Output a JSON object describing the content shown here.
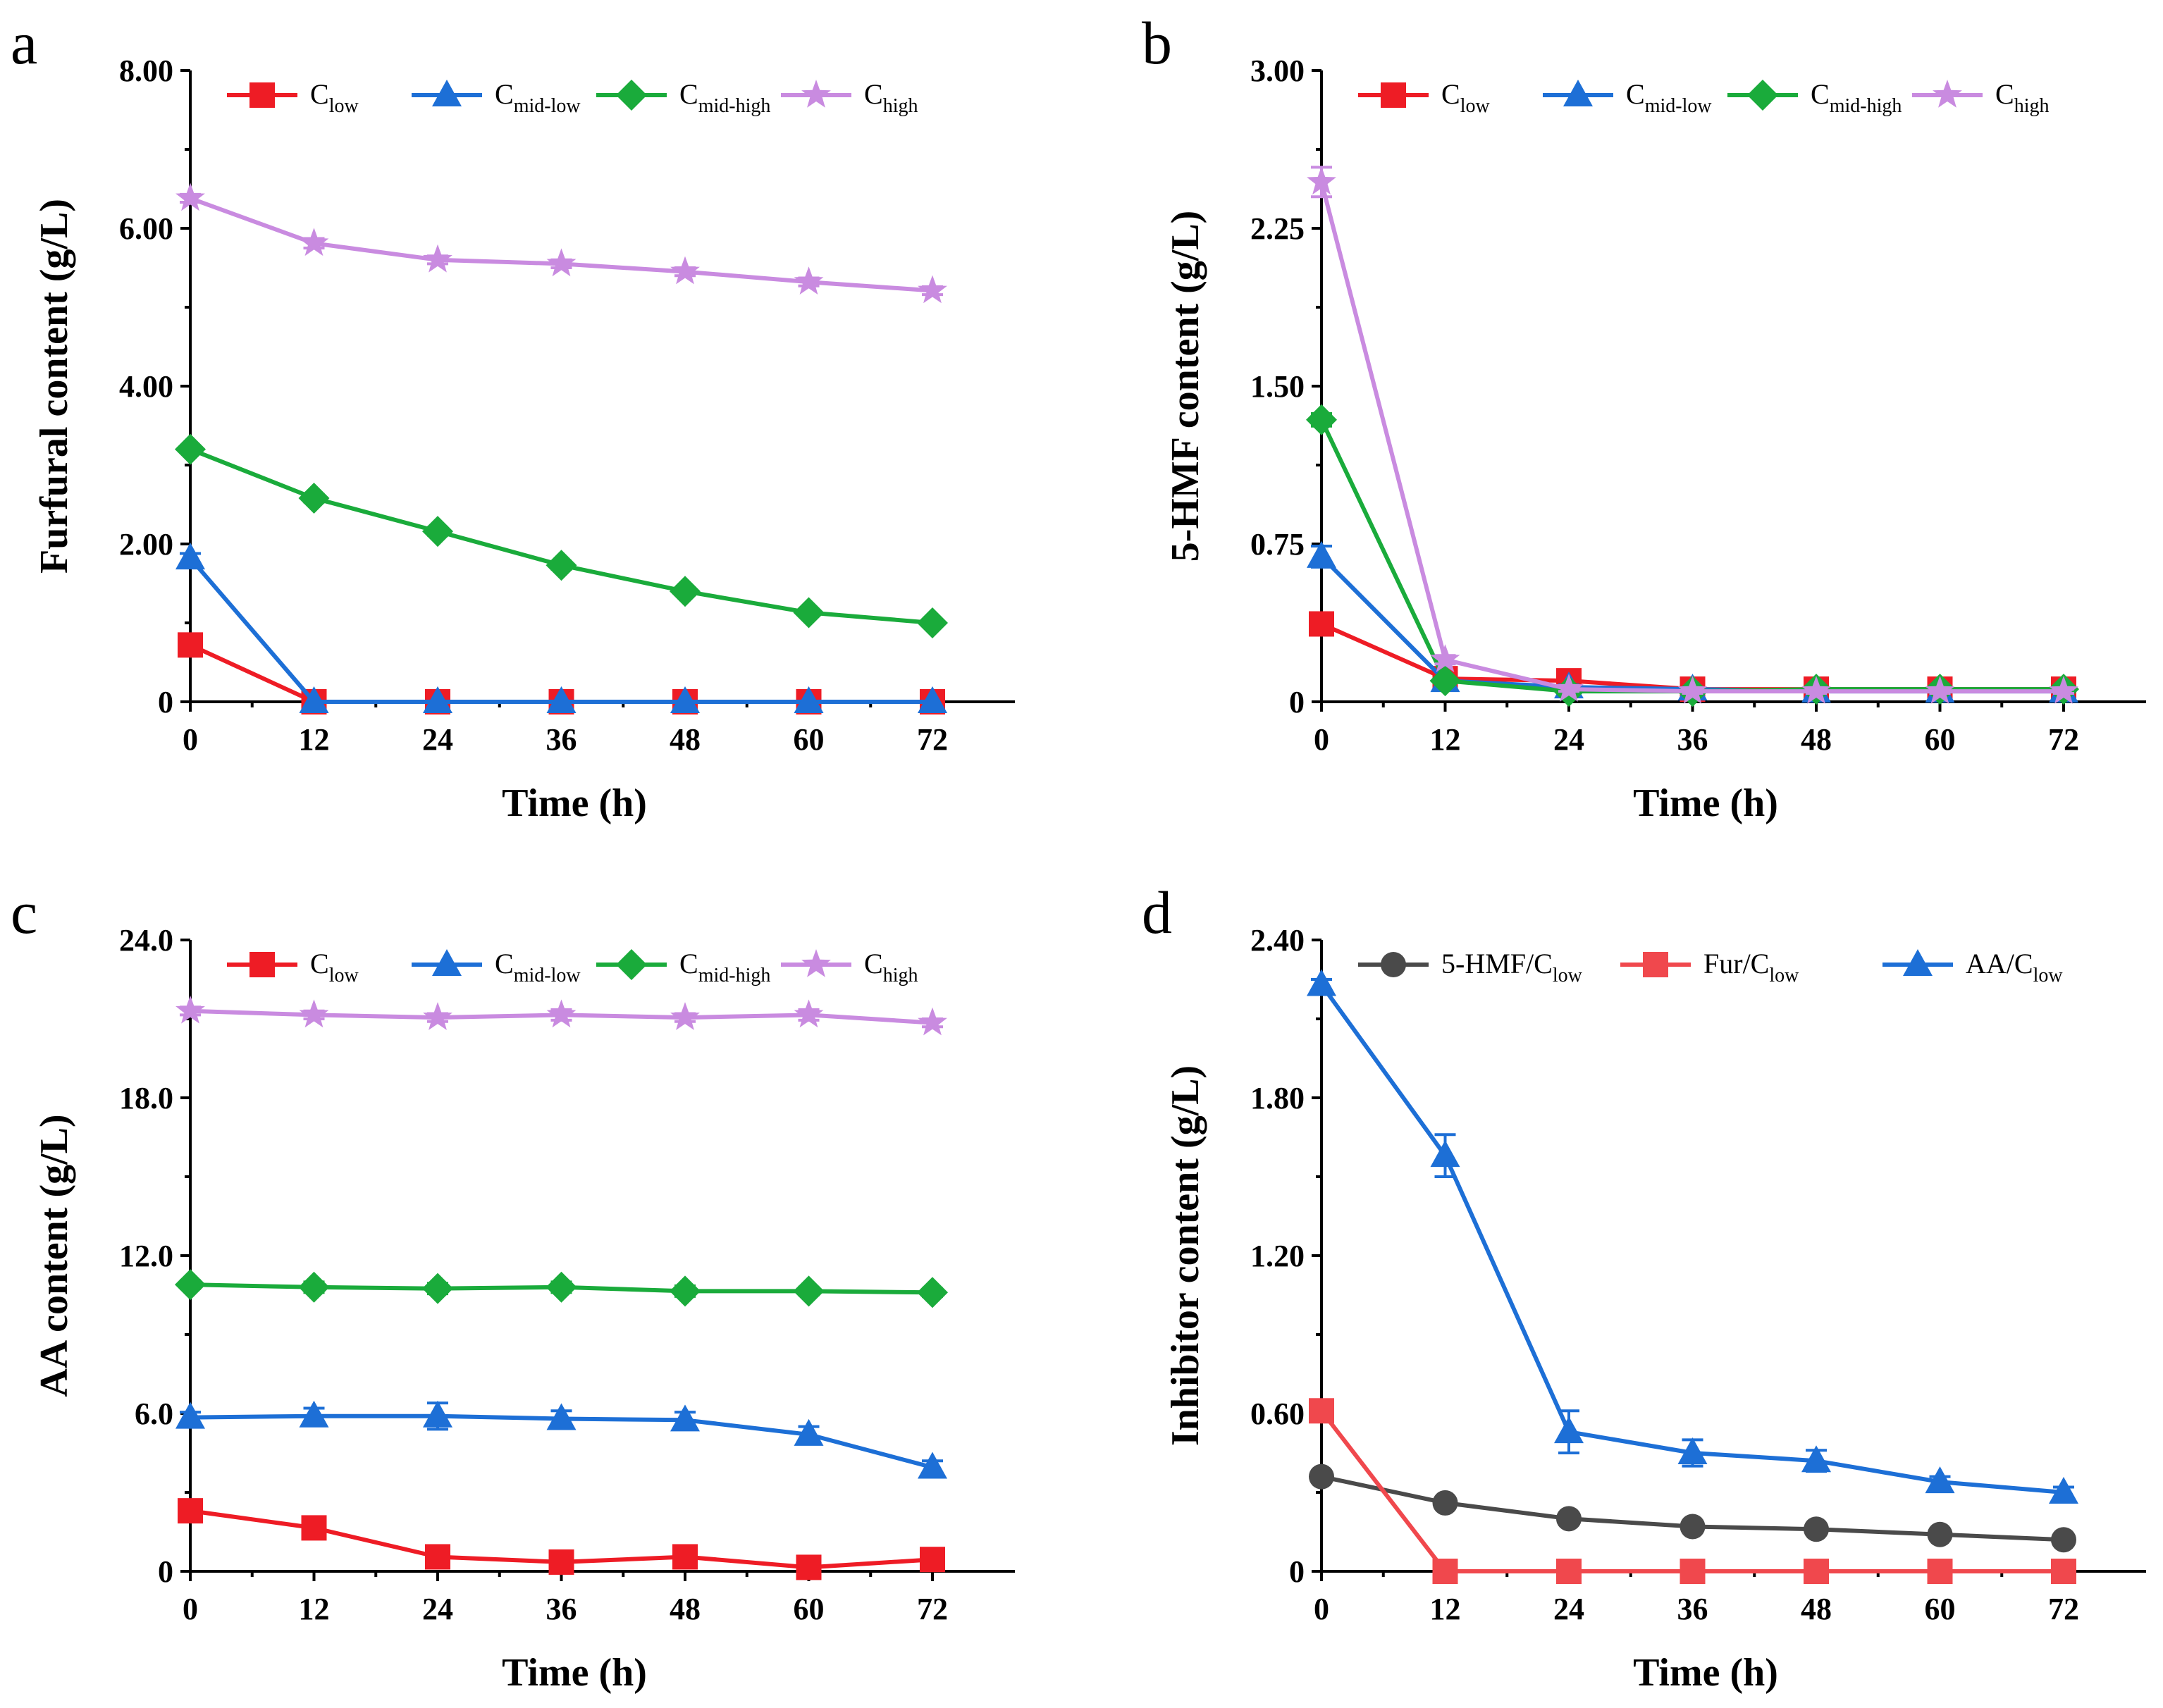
{
  "chart_data": [
    {
      "type": "line",
      "panel_label": "a",
      "xlabel": "Time (h)",
      "ylabel": "Furfural content (g/L)",
      "x": [
        0,
        12,
        24,
        36,
        48,
        60,
        72
      ],
      "xlim": [
        0,
        80
      ],
      "ylim": [
        0,
        8
      ],
      "yticks": [
        0,
        2,
        4,
        6,
        8
      ],
      "ytick_labels": [
        "0",
        "2.00",
        "4.00",
        "6.00",
        "8.00"
      ],
      "legend_position": "top",
      "series": [
        {
          "name": "C",
          "sub": "low",
          "color": "#ee1c25",
          "marker": "square",
          "values": [
            0.72,
            0,
            0,
            0,
            0,
            0,
            0
          ],
          "errors": [
            0.05,
            0,
            0,
            0,
            0,
            0,
            0
          ]
        },
        {
          "name": "C",
          "sub": "mid-low",
          "color": "#1d6fd6",
          "marker": "triangle",
          "values": [
            1.82,
            0,
            0,
            0,
            0,
            0,
            0
          ],
          "errors": [
            0.06,
            0,
            0,
            0,
            0,
            0,
            0
          ]
        },
        {
          "name": "C",
          "sub": "mid-high",
          "color": "#1aab3b",
          "marker": "diamond",
          "values": [
            3.2,
            2.58,
            2.16,
            1.73,
            1.4,
            1.13,
            1.0
          ],
          "errors": [
            0.04,
            0.05,
            0.05,
            0.05,
            0.04,
            0.04,
            0.04
          ]
        },
        {
          "name": "C",
          "sub": "high",
          "color": "#c98be0",
          "marker": "star",
          "values": [
            6.38,
            5.81,
            5.6,
            5.55,
            5.45,
            5.32,
            5.21
          ],
          "errors": [
            0.05,
            0.06,
            0.05,
            0.05,
            0.05,
            0.05,
            0.05
          ]
        }
      ]
    },
    {
      "type": "line",
      "panel_label": "b",
      "xlabel": "Time (h)",
      "ylabel": "5-HMF content (g/L)",
      "x": [
        0,
        12,
        24,
        36,
        48,
        60,
        72
      ],
      "xlim": [
        0,
        80
      ],
      "ylim": [
        0,
        3
      ],
      "yticks": [
        0,
        0.75,
        1.5,
        2.25,
        3.0
      ],
      "ytick_labels": [
        "0",
        "0.75",
        "1.50",
        "2.25",
        "3.00"
      ],
      "legend_position": "top",
      "series": [
        {
          "name": "C",
          "sub": "low",
          "color": "#ee1c25",
          "marker": "square",
          "values": [
            0.37,
            0.11,
            0.1,
            0.06,
            0.06,
            0.06,
            0.06
          ],
          "errors": [
            0.02,
            0.01,
            0.01,
            0.01,
            0.01,
            0.01,
            0.01
          ]
        },
        {
          "name": "C",
          "sub": "mid-low",
          "color": "#1d6fd6",
          "marker": "triangle",
          "values": [
            0.69,
            0.1,
            0.07,
            0.06,
            0.05,
            0.05,
            0.05
          ],
          "errors": [
            0.05,
            0.01,
            0.01,
            0.01,
            0.01,
            0.01,
            0.01
          ]
        },
        {
          "name": "C",
          "sub": "mid-high",
          "color": "#1aab3b",
          "marker": "diamond",
          "values": [
            1.34,
            0.1,
            0.05,
            0.05,
            0.06,
            0.06,
            0.06
          ],
          "errors": [
            0.03,
            0.01,
            0.01,
            0.01,
            0.01,
            0.01,
            0.01
          ]
        },
        {
          "name": "C",
          "sub": "high",
          "color": "#c98be0",
          "marker": "star",
          "values": [
            2.47,
            0.2,
            0.06,
            0.05,
            0.05,
            0.05,
            0.05
          ],
          "errors": [
            0.07,
            0.02,
            0.01,
            0.01,
            0.01,
            0.01,
            0.01
          ]
        }
      ]
    },
    {
      "type": "line",
      "panel_label": "c",
      "xlabel": "Time (h)",
      "ylabel": "AA content (g/L)",
      "x": [
        0,
        12,
        24,
        36,
        48,
        60,
        72
      ],
      "xlim": [
        0,
        80
      ],
      "ylim": [
        0,
        24
      ],
      "yticks": [
        0,
        6,
        12,
        18,
        24
      ],
      "ytick_labels": [
        "0",
        "6.0",
        "12.0",
        "18.0",
        "24.0"
      ],
      "legend_position": "top",
      "series": [
        {
          "name": "C",
          "sub": "low",
          "color": "#ee1c25",
          "marker": "square",
          "values": [
            2.3,
            1.65,
            0.55,
            0.35,
            0.55,
            0.15,
            0.45
          ],
          "errors": [
            0.2,
            0.25,
            0.4,
            0.25,
            0.3,
            0.15,
            0.25
          ]
        },
        {
          "name": "C",
          "sub": "mid-low",
          "color": "#1d6fd6",
          "marker": "triangle",
          "values": [
            5.85,
            5.9,
            5.9,
            5.8,
            5.75,
            5.2,
            3.95
          ],
          "errors": [
            0.2,
            0.3,
            0.5,
            0.3,
            0.3,
            0.3,
            0.25
          ]
        },
        {
          "name": "C",
          "sub": "mid-high",
          "color": "#1aab3b",
          "marker": "diamond",
          "values": [
            10.9,
            10.8,
            10.75,
            10.8,
            10.65,
            10.65,
            10.6
          ],
          "errors": [
            0.15,
            0.2,
            0.2,
            0.2,
            0.2,
            0.15,
            0.15
          ]
        },
        {
          "name": "C",
          "sub": "high",
          "color": "#c98be0",
          "marker": "star",
          "values": [
            21.3,
            21.15,
            21.05,
            21.15,
            21.05,
            21.15,
            20.85
          ],
          "errors": [
            0.15,
            0.15,
            0.15,
            0.2,
            0.15,
            0.2,
            0.15
          ]
        }
      ]
    },
    {
      "type": "line",
      "panel_label": "d",
      "xlabel": "Time (h)",
      "ylabel": "Inhibitor content (g/L)",
      "x": [
        0,
        12,
        24,
        36,
        48,
        60,
        72
      ],
      "xlim": [
        0,
        80
      ],
      "ylim": [
        0,
        2.4
      ],
      "yticks": [
        0,
        0.6,
        1.2,
        1.8,
        2.4
      ],
      "ytick_labels": [
        "0",
        "0.60",
        "1.20",
        "1.80",
        "2.40"
      ],
      "legend_position": "top",
      "series": [
        {
          "name": "5-HMF/C",
          "sub": "low",
          "color": "#4a4a4a",
          "marker": "circle",
          "values": [
            0.36,
            0.26,
            0.2,
            0.17,
            0.16,
            0.14,
            0.12
          ],
          "errors": [
            0.01,
            0.01,
            0.01,
            0.01,
            0.01,
            0.01,
            0.01
          ]
        },
        {
          "name": "Fur/C",
          "sub": "low",
          "color": "#f0484d",
          "marker": "square",
          "values": [
            0.61,
            0,
            0,
            0,
            0,
            0,
            0
          ],
          "errors": [
            0.01,
            0,
            0,
            0,
            0,
            0,
            0
          ]
        },
        {
          "name": "AA/C",
          "sub": "low",
          "color": "#1d6fd6",
          "marker": "triangle",
          "values": [
            2.23,
            1.58,
            0.53,
            0.45,
            0.42,
            0.34,
            0.3
          ],
          "errors": [
            0.02,
            0.08,
            0.08,
            0.05,
            0.04,
            0.02,
            0.02
          ]
        }
      ]
    }
  ]
}
